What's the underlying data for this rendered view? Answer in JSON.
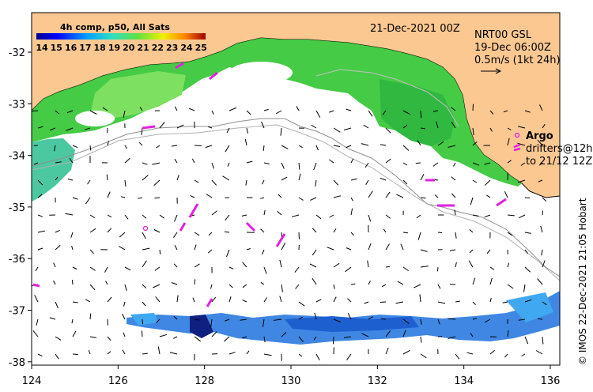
{
  "title_date": "21-Dec-2021 00Z",
  "colorbar": {
    "title": "4h comp, p50, All Sats",
    "ticks": [
      "14",
      "15",
      "16",
      "17",
      "18",
      "19",
      "20",
      "21",
      "22",
      "23",
      "24",
      "25"
    ]
  },
  "current_info": {
    "line1": "NRT00 GSL",
    "line2": "19-Dec 06:00Z",
    "line3": "0.5m/s (1kt 24h)"
  },
  "legend": {
    "argo": "Argo",
    "drifters": "drifters@12h",
    "drifters2": "to 21/12 12Z"
  },
  "credit": "© IMOS 22-Dec-2021 21:05 Hobart",
  "axes": {
    "x_ticks": [
      "124",
      "126",
      "128",
      "130",
      "132",
      "134",
      "136"
    ],
    "y_ticks": [
      "-32",
      "-33",
      "-34",
      "-35",
      "-36",
      "-37",
      "-38"
    ]
  },
  "colors": {
    "land": "#fbc892",
    "sst_green": "#3cc83c",
    "sst_blue": "#2a7ae0",
    "drifter": "#e020e0"
  }
}
